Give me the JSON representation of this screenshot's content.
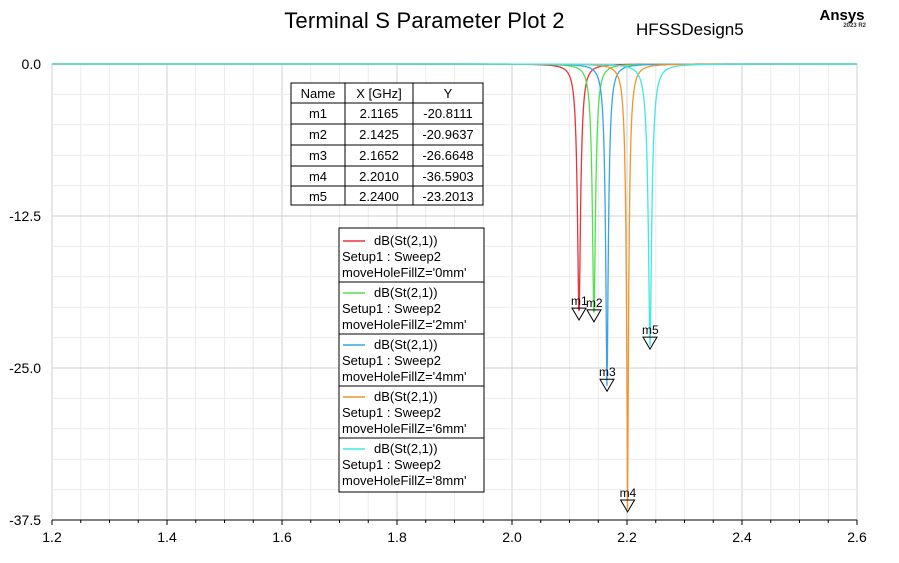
{
  "header": {
    "title": "Terminal S Parameter Plot 2",
    "design": "HFSSDesign5",
    "brand": "Ansys",
    "brand_version": "2023 R2"
  },
  "chart_data": {
    "type": "line",
    "title": "Terminal S Parameter Plot 2",
    "xlabel": "",
    "ylabel": "",
    "xlim": [
      1.2,
      2.6
    ],
    "ylim": [
      -37.5,
      0.0
    ],
    "x_ticks": [
      "1.2",
      "1.4",
      "1.6",
      "1.8",
      "2.0",
      "2.2",
      "2.4",
      "2.6"
    ],
    "y_ticks": [
      "0.0",
      "-12.5",
      "-25.0",
      "-37.5"
    ],
    "grid": true,
    "series": [
      {
        "name": "dB(St(2,1))",
        "setup": "Setup1 : Sweep2",
        "param": "moveHoleFillZ='0mm'",
        "color": "#e8323c",
        "f0": 2.1165,
        "min": -20.8111,
        "width": 0.006
      },
      {
        "name": "dB(St(2,1))",
        "setup": "Setup1 : Sweep2",
        "param": "moveHoleFillZ='2mm'",
        "color": "#52e052",
        "f0": 2.1425,
        "min": -20.9637,
        "width": 0.006
      },
      {
        "name": "dB(St(2,1))",
        "setup": "Setup1 : Sweep2",
        "param": "moveHoleFillZ='4mm'",
        "color": "#3aa3e8",
        "f0": 2.1652,
        "min": -26.6648,
        "width": 0.006
      },
      {
        "name": "dB(St(2,1))",
        "setup": "Setup1 : Sweep2",
        "param": "moveHoleFillZ='6mm'",
        "color": "#f0952e",
        "f0": 2.201,
        "min": -36.5903,
        "width": 0.006
      },
      {
        "name": "dB(St(2,1))",
        "setup": "Setup1 : Sweep2",
        "param": "moveHoleFillZ='8mm'",
        "color": "#3ee8e8",
        "f0": 2.24,
        "min": -23.2013,
        "width": 0.007
      }
    ],
    "marker_table": {
      "headers": [
        "Name",
        "X [GHz]",
        "Y"
      ],
      "rows": [
        [
          "m1",
          "2.1165",
          "-20.8111"
        ],
        [
          "m2",
          "2.1425",
          "-20.9637"
        ],
        [
          "m3",
          "2.1652",
          "-26.6648"
        ],
        [
          "m4",
          "2.2010",
          "-36.5903"
        ],
        [
          "m5",
          "2.2400",
          "-23.2013"
        ]
      ]
    },
    "markers": [
      {
        "label": "m1",
        "x": 2.1165,
        "y": -20.8111
      },
      {
        "label": "m2",
        "x": 2.1425,
        "y": -20.9637
      },
      {
        "label": "m3",
        "x": 2.1652,
        "y": -26.6648
      },
      {
        "label": "m4",
        "x": 2.201,
        "y": -36.5903
      },
      {
        "label": "m5",
        "x": 2.24,
        "y": -23.2013
      }
    ]
  }
}
